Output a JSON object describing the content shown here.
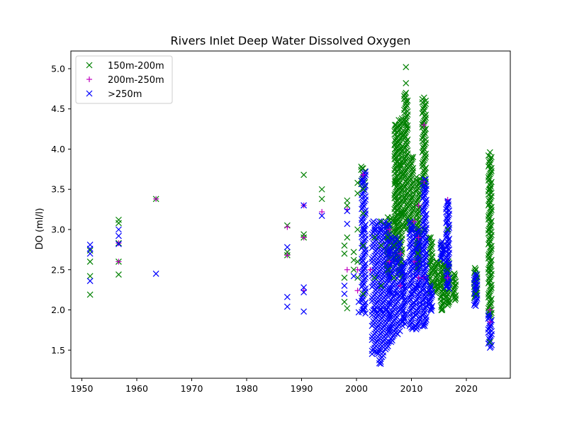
{
  "chart_data": {
    "type": "scatter",
    "title": "Rivers Inlet Deep Water Dissolved Oxygen",
    "xlabel": "",
    "ylabel": "DO (ml/l)",
    "xlim": [
      1948,
      2028
    ],
    "ylim": [
      1.15,
      5.22
    ],
    "xticks": [
      "1950",
      "1960",
      "1970",
      "1980",
      "1990",
      "2000",
      "2010",
      "2020"
    ],
    "yticks": [
      "1.5",
      "2.0",
      "2.5",
      "3.0",
      "3.5",
      "4.0",
      "4.5",
      "5.0"
    ],
    "grid": false,
    "legend_position": "upper-left",
    "series": [
      {
        "name": "150m-200m",
        "marker": "x",
        "color": "#008000",
        "points": [
          [
            1951.5,
            2.19
          ],
          [
            1951.5,
            2.42
          ],
          [
            1951.5,
            2.6
          ],
          [
            1951.5,
            2.74
          ],
          [
            1956.7,
            2.44
          ],
          [
            1956.7,
            2.6
          ],
          [
            1956.7,
            2.83
          ],
          [
            1956.7,
            3.08
          ],
          [
            1956.7,
            3.12
          ],
          [
            1963.5,
            3.38
          ],
          [
            1987.4,
            2.68
          ],
          [
            1987.4,
            2.72
          ],
          [
            1987.4,
            3.05
          ],
          [
            1990.4,
            2.9
          ],
          [
            1990.4,
            2.94
          ],
          [
            1990.4,
            3.68
          ],
          [
            1993.7,
            3.38
          ],
          [
            1993.7,
            3.5
          ],
          [
            1997.8,
            2.1
          ],
          [
            1997.8,
            2.4
          ],
          [
            1997.8,
            2.7
          ],
          [
            1997.8,
            2.8
          ],
          [
            1998.3,
            2.02
          ],
          [
            1998.3,
            2.9
          ],
          [
            1998.3,
            3.3
          ],
          [
            1998.3,
            3.36
          ],
          [
            1999.5,
            2.5
          ],
          [
            1999.5,
            2.62
          ],
          [
            1999.5,
            2.72
          ],
          [
            2000.2,
            2.4
          ],
          [
            2000.2,
            2.6
          ],
          [
            2000.2,
            3.0
          ],
          [
            2000.2,
            3.45
          ],
          [
            2000.2,
            3.58
          ],
          [
            2001.2,
            2.2
          ],
          [
            2001.2,
            2.8
          ],
          [
            2001.2,
            3.2
          ],
          [
            2001.2,
            3.5
          ],
          [
            2001.2,
            3.76
          ],
          [
            2003.3,
            2.4
          ],
          [
            2003.3,
            2.9
          ],
          [
            2004.5,
            2.3
          ],
          [
            2004.5,
            2.8
          ],
          [
            2004.5,
            3.1
          ],
          [
            2005.7,
            2.5
          ],
          [
            2005.7,
            2.9
          ],
          [
            2005.7,
            3.15
          ],
          [
            2006.8,
            2.4
          ],
          [
            2006.8,
            2.8
          ],
          [
            2006.8,
            3.1
          ],
          [
            2007.0,
            3.0
          ],
          [
            2007.0,
            3.6
          ],
          [
            2007.0,
            4.0
          ],
          [
            2007.0,
            4.3
          ],
          [
            2008.1,
            2.6
          ],
          [
            2008.1,
            3.2
          ],
          [
            2008.1,
            3.8
          ],
          [
            2008.1,
            4.36
          ],
          [
            2009.0,
            3.0
          ],
          [
            2009.0,
            3.6
          ],
          [
            2009.0,
            4.3
          ],
          [
            2009.0,
            4.6
          ],
          [
            2009.0,
            4.82
          ],
          [
            2009.0,
            5.02
          ],
          [
            2010.0,
            3.0
          ],
          [
            2010.0,
            3.4
          ],
          [
            2010.0,
            3.9
          ],
          [
            2011.2,
            2.7
          ],
          [
            2011.2,
            3.2
          ],
          [
            2011.2,
            3.6
          ],
          [
            2012.3,
            3.0
          ],
          [
            2012.3,
            3.6
          ],
          [
            2012.3,
            4.0
          ],
          [
            2012.3,
            4.3
          ],
          [
            2012.3,
            4.64
          ],
          [
            2013.5,
            2.6
          ],
          [
            2013.5,
            2.9
          ],
          [
            2014.5,
            2.3
          ],
          [
            2014.5,
            2.6
          ],
          [
            2015.6,
            2.0
          ],
          [
            2015.6,
            2.4
          ],
          [
            2015.6,
            2.8
          ],
          [
            2016.6,
            2.1
          ],
          [
            2016.6,
            2.5
          ],
          [
            2016.6,
            3.0
          ],
          [
            2017.8,
            2.15
          ],
          [
            2017.8,
            2.45
          ],
          [
            2021.7,
            2.2
          ],
          [
            2021.7,
            2.5
          ],
          [
            2024.3,
            1.6
          ],
          [
            2024.3,
            2.0
          ],
          [
            2024.3,
            2.5
          ],
          [
            2024.3,
            3.0
          ],
          [
            2024.3,
            3.5
          ],
          [
            2024.3,
            3.96
          ]
        ]
      },
      {
        "name": "200m-250m",
        "marker": "+",
        "color": "#bf00bf",
        "points": [
          [
            1956.7,
            2.6
          ],
          [
            1956.7,
            2.83
          ],
          [
            1963.5,
            3.38
          ],
          [
            1987.4,
            2.68
          ],
          [
            1987.4,
            3.03
          ],
          [
            1990.4,
            2.24
          ],
          [
            1990.4,
            2.9
          ],
          [
            1990.4,
            3.3
          ],
          [
            1993.7,
            3.22
          ],
          [
            1998.3,
            2.5
          ],
          [
            1998.3,
            3.25
          ],
          [
            2000.2,
            2.24
          ],
          [
            2000.2,
            2.5
          ],
          [
            2001.2,
            3.68
          ],
          [
            2002.5,
            2.5
          ],
          [
            2006.0,
            2.6
          ],
          [
            2006.0,
            3.0
          ],
          [
            2008.0,
            2.3
          ],
          [
            2008.0,
            2.7
          ],
          [
            2010.5,
            2.6
          ],
          [
            2010.5,
            3.1
          ],
          [
            2011.3,
            2.4
          ],
          [
            2011.3,
            2.9
          ],
          [
            2011.3,
            3.3
          ],
          [
            2012.3,
            2.4
          ],
          [
            2012.3,
            3.6
          ],
          [
            2012.3,
            4.3
          ],
          [
            2016.6,
            2.4
          ],
          [
            2016.6,
            3.37
          ],
          [
            2024.3,
            1.85
          ],
          [
            2024.3,
            2.0
          ]
        ]
      },
      {
        "name": ">250m",
        "marker": "x",
        "color": "#0000ff",
        "points": [
          [
            1951.5,
            2.36
          ],
          [
            1951.5,
            2.7
          ],
          [
            1951.5,
            2.76
          ],
          [
            1951.5,
            2.81
          ],
          [
            1956.7,
            2.82
          ],
          [
            1956.7,
            2.92
          ],
          [
            1956.7,
            3.0
          ],
          [
            1963.5,
            2.45
          ],
          [
            1987.4,
            2.04
          ],
          [
            1987.4,
            2.16
          ],
          [
            1987.4,
            2.78
          ],
          [
            1990.4,
            1.98
          ],
          [
            1990.4,
            2.22
          ],
          [
            1990.4,
            2.28
          ],
          [
            1990.4,
            3.3
          ],
          [
            1993.7,
            3.17
          ],
          [
            1997.8,
            2.2
          ],
          [
            1997.8,
            2.3
          ],
          [
            1998.3,
            3.07
          ],
          [
            1998.3,
            3.23
          ],
          [
            1999.5,
            2.42
          ],
          [
            2000.4,
            1.97
          ],
          [
            2000.4,
            2.1
          ],
          [
            2001.3,
            2.0
          ],
          [
            2001.3,
            2.5
          ],
          [
            2001.3,
            3.0
          ],
          [
            2001.3,
            3.6
          ],
          [
            2003.3,
            1.48
          ],
          [
            2003.3,
            2.0
          ],
          [
            2003.3,
            2.5
          ],
          [
            2003.3,
            3.0
          ],
          [
            2004.4,
            1.33
          ],
          [
            2004.4,
            1.5
          ],
          [
            2004.4,
            2.0
          ],
          [
            2004.4,
            2.5
          ],
          [
            2004.4,
            3.0
          ],
          [
            2005.5,
            1.6
          ],
          [
            2005.5,
            2.0
          ],
          [
            2005.5,
            2.5
          ],
          [
            2005.5,
            3.05
          ],
          [
            2006.5,
            1.8
          ],
          [
            2006.5,
            2.2
          ],
          [
            2006.5,
            2.6
          ],
          [
            2007.5,
            1.7
          ],
          [
            2007.5,
            2.2
          ],
          [
            2007.5,
            2.6
          ],
          [
            2008.6,
            1.9
          ],
          [
            2008.6,
            2.3
          ],
          [
            2010.0,
            1.78
          ],
          [
            2010.0,
            2.2
          ],
          [
            2010.0,
            2.6
          ],
          [
            2010.0,
            3.0
          ],
          [
            2011.3,
            1.8
          ],
          [
            2011.3,
            2.3
          ],
          [
            2011.3,
            2.8
          ],
          [
            2012.4,
            1.8
          ],
          [
            2012.4,
            2.4
          ],
          [
            2012.4,
            3.0
          ],
          [
            2012.4,
            3.5
          ],
          [
            2012.4,
            3.62
          ],
          [
            2013.5,
            2.0
          ],
          [
            2013.5,
            2.2
          ],
          [
            2015.6,
            2.7
          ],
          [
            2015.6,
            2.8
          ],
          [
            2016.6,
            2.3
          ],
          [
            2016.6,
            2.8
          ],
          [
            2016.6,
            3.35
          ],
          [
            2021.7,
            2.05
          ],
          [
            2021.7,
            2.3
          ],
          [
            2024.3,
            1.53
          ],
          [
            2024.3,
            1.8
          ]
        ]
      }
    ],
    "dense_columns": [
      {
        "series": ">250m",
        "x": 2001.3,
        "lo": 1.95,
        "hi": 3.72,
        "w": 1.0
      },
      {
        "series": ">250m",
        "x": 2003.3,
        "lo": 1.45,
        "hi": 3.1,
        "w": 1.4
      },
      {
        "series": ">250m",
        "x": 2004.4,
        "lo": 1.33,
        "hi": 3.1,
        "w": 1.4
      },
      {
        "series": ">250m",
        "x": 2005.5,
        "lo": 1.5,
        "hi": 3.1,
        "w": 1.3
      },
      {
        "series": ">250m",
        "x": 2006.5,
        "lo": 1.6,
        "hi": 2.9,
        "w": 1.2
      },
      {
        "series": ">250m",
        "x": 2007.5,
        "lo": 1.7,
        "hi": 2.9,
        "w": 1.2
      },
      {
        "series": ">250m",
        "x": 2008.6,
        "lo": 1.8,
        "hi": 2.6,
        "w": 0.8
      },
      {
        "series": ">250m",
        "x": 2010.0,
        "lo": 1.75,
        "hi": 3.1,
        "w": 1.0
      },
      {
        "series": ">250m",
        "x": 2011.2,
        "lo": 1.75,
        "hi": 3.0,
        "w": 1.0
      },
      {
        "series": ">250m",
        "x": 2012.4,
        "lo": 1.78,
        "hi": 3.62,
        "w": 0.9
      },
      {
        "series": ">250m",
        "x": 2013.5,
        "lo": 1.98,
        "hi": 2.3,
        "w": 0.8
      },
      {
        "series": ">250m",
        "x": 2015.6,
        "lo": 2.6,
        "hi": 2.85,
        "w": 0.8
      },
      {
        "series": ">250m",
        "x": 2016.6,
        "lo": 2.25,
        "hi": 3.35,
        "w": 0.8
      },
      {
        "series": ">250m",
        "x": 2021.7,
        "lo": 2.05,
        "hi": 2.45,
        "w": 0.8
      },
      {
        "series": ">250m",
        "x": 2024.3,
        "lo": 1.53,
        "hi": 1.95,
        "w": 0.9
      },
      {
        "series": "150m-200m",
        "x": 2001.2,
        "lo": 3.5,
        "hi": 3.78,
        "w": 1.0
      },
      {
        "series": "150m-200m",
        "x": 2006.0,
        "lo": 2.4,
        "hi": 3.15,
        "w": 1.3
      },
      {
        "series": "150m-200m",
        "x": 2007.2,
        "lo": 2.6,
        "hi": 4.3,
        "w": 0.8
      },
      {
        "series": "150m-200m",
        "x": 2008.0,
        "lo": 2.4,
        "hi": 4.38,
        "w": 0.9
      },
      {
        "series": "150m-200m",
        "x": 2009.0,
        "lo": 3.0,
        "hi": 4.7,
        "w": 0.9
      },
      {
        "series": "150m-200m",
        "x": 2010.0,
        "lo": 3.0,
        "hi": 3.9,
        "w": 0.9
      },
      {
        "series": "150m-200m",
        "x": 2011.2,
        "lo": 2.5,
        "hi": 3.65,
        "w": 0.9
      },
      {
        "series": "150m-200m",
        "x": 2012.3,
        "lo": 3.5,
        "hi": 4.62,
        "w": 0.9
      },
      {
        "series": "150m-200m",
        "x": 2013.5,
        "lo": 2.2,
        "hi": 2.9,
        "w": 0.9
      },
      {
        "series": "150m-200m",
        "x": 2014.5,
        "lo": 2.2,
        "hi": 2.6,
        "w": 0.8
      },
      {
        "series": "150m-200m",
        "x": 2015.6,
        "lo": 1.98,
        "hi": 2.85,
        "w": 0.8
      },
      {
        "series": "150m-200m",
        "x": 2016.6,
        "lo": 2.05,
        "hi": 2.6,
        "w": 0.8
      },
      {
        "series": "150m-200m",
        "x": 2017.8,
        "lo": 2.12,
        "hi": 2.45,
        "w": 0.6
      },
      {
        "series": "150m-200m",
        "x": 2021.7,
        "lo": 2.15,
        "hi": 2.52,
        "w": 0.8
      },
      {
        "series": "150m-200m",
        "x": 2024.3,
        "lo": 1.9,
        "hi": 3.92,
        "w": 0.8
      }
    ]
  }
}
